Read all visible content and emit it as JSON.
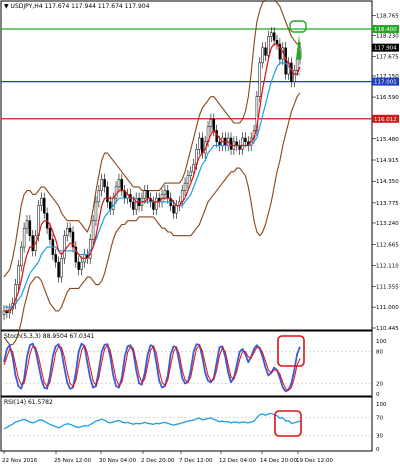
{
  "chart_data": [
    {
      "type": "candlestick",
      "title": "USDJPY,H4",
      "ohlc": "117.674 117.944 117.674 117.904",
      "ylim": [
        110.445,
        118.8
      ],
      "y_ticks": [
        "118.765",
        "118.230",
        "117.675",
        "117.150",
        "116.590",
        "116.020",
        "115.480",
        "114.915",
        "114.350",
        "113.775",
        "113.240",
        "112.665",
        "112.110",
        "111.555",
        "111.000",
        "110.445"
      ],
      "x_ticks": [
        "22 Nov 2016",
        "25 Nov 12:00",
        "30 Nov 04:00",
        "2 Dec 20:00",
        "7 Dec 12:00",
        "12 Dec 04:00",
        "14 Dec 20:00",
        "19 Dec 12:00"
      ],
      "hlines": [
        {
          "value": 118.4,
          "label": "118.400",
          "color": "#22aa22"
        },
        {
          "value": 117.904,
          "label": "117.904",
          "color": "#000000"
        },
        {
          "value": 117.001,
          "label": "117.001",
          "color": "#1f3fbf"
        },
        {
          "value": 116.012,
          "label": "116.012",
          "color": "#d01818"
        }
      ],
      "price": [
        110.9,
        110.85,
        110.95,
        111.1,
        111.6,
        112.1,
        112.6,
        113.1,
        113.3,
        112.9,
        112.5,
        112.9,
        113.7,
        113.9,
        113.5,
        113.1,
        112.8,
        112.4,
        112.2,
        111.8,
        112.3,
        112.9,
        113.1,
        113.0,
        112.6,
        112.2,
        112.0,
        112.2,
        112.4,
        112.3,
        112.8,
        113.3,
        113.8,
        114.1,
        114.4,
        114.2,
        113.8,
        113.6,
        113.9,
        114.2,
        114.4,
        114.1,
        113.9,
        114.0,
        113.8,
        113.6,
        113.9,
        113.7,
        113.9,
        114.1,
        113.9,
        113.8,
        113.6,
        113.9,
        113.8,
        114.0,
        114.1,
        113.9,
        113.7,
        113.5,
        113.7,
        113.8,
        114.1,
        114.3,
        114.5,
        114.6,
        114.8,
        115.2,
        115.5,
        115.1,
        115.4,
        115.8,
        116.0,
        115.7,
        115.4,
        115.3,
        115.5,
        115.3,
        115.5,
        115.2,
        115.4,
        115.3,
        115.2,
        115.5,
        115.4,
        115.3,
        115.5,
        115.7,
        116.6,
        117.5,
        117.9,
        117.7,
        118.2,
        118.3,
        118.1,
        118.0,
        117.6,
        117.9,
        117.2,
        117.5,
        117.0,
        117.3,
        117.6,
        117.9
      ],
      "red_ma": [
        110.9,
        110.9,
        110.9,
        111.0,
        111.2,
        111.4,
        111.7,
        112.1,
        112.4,
        112.6,
        112.6,
        112.7,
        112.9,
        113.2,
        113.3,
        113.3,
        113.2,
        113.0,
        112.8,
        112.5,
        112.4,
        112.5,
        112.6,
        112.7,
        112.7,
        112.5,
        112.4,
        112.3,
        112.3,
        112.3,
        112.4,
        112.6,
        112.9,
        113.3,
        113.7,
        113.9,
        113.9,
        113.9,
        113.9,
        114.0,
        114.1,
        114.1,
        114.1,
        114.0,
        113.9,
        113.9,
        113.8,
        113.8,
        113.8,
        113.8,
        113.9,
        113.9,
        113.8,
        113.8,
        113.8,
        113.9,
        113.9,
        113.9,
        113.9,
        113.8,
        113.7,
        113.7,
        113.8,
        113.9,
        114.1,
        114.3,
        114.5,
        114.8,
        115.0,
        115.1,
        115.2,
        115.4,
        115.6,
        115.7,
        115.6,
        115.5,
        115.4,
        115.4,
        115.4,
        115.3,
        115.3,
        115.3,
        115.3,
        115.3,
        115.3,
        115.3,
        115.4,
        115.5,
        115.8,
        116.3,
        116.8,
        117.2,
        117.6,
        117.9,
        118.0,
        118.0,
        117.9,
        117.8,
        117.6,
        117.5,
        117.3,
        117.2,
        117.2,
        117.4
      ],
      "blue_ma": [
        111.0,
        111.0,
        111.0,
        111.0,
        111.1,
        111.2,
        111.3,
        111.5,
        111.7,
        111.9,
        112.0,
        112.1,
        112.2,
        112.4,
        112.5,
        112.6,
        112.6,
        112.6,
        112.6,
        112.5,
        112.5,
        112.5,
        112.5,
        112.5,
        112.5,
        112.5,
        112.4,
        112.4,
        112.4,
        112.4,
        112.5,
        112.6,
        112.8,
        113.0,
        113.2,
        113.4,
        113.5,
        113.6,
        113.7,
        113.8,
        113.9,
        113.9,
        113.9,
        113.9,
        113.9,
        113.9,
        113.9,
        113.8,
        113.8,
        113.8,
        113.8,
        113.8,
        113.8,
        113.8,
        113.8,
        113.8,
        113.8,
        113.8,
        113.8,
        113.8,
        113.7,
        113.7,
        113.7,
        113.8,
        113.9,
        114.0,
        114.2,
        114.4,
        114.6,
        114.8,
        114.9,
        115.1,
        115.2,
        115.3,
        115.3,
        115.3,
        115.3,
        115.3,
        115.3,
        115.3,
        115.3,
        115.3,
        115.3,
        115.3,
        115.3,
        115.3,
        115.3,
        115.4,
        115.5,
        115.8,
        116.1,
        116.4,
        116.7,
        117.0,
        117.2,
        117.4,
        117.5,
        117.5,
        117.5,
        117.4,
        117.3,
        117.2,
        117.2,
        117.2
      ],
      "bb_upper": [
        111.8,
        111.9,
        112.0,
        112.3,
        112.7,
        113.2,
        113.7,
        114.0,
        114.1,
        114.1,
        114.0,
        114.0,
        114.1,
        114.2,
        114.2,
        114.1,
        114.0,
        113.9,
        113.8,
        113.7,
        113.5,
        113.4,
        113.3,
        113.3,
        113.3,
        113.3,
        113.3,
        113.2,
        113.1,
        113.0,
        113.2,
        113.6,
        114.1,
        114.5,
        114.9,
        115.1,
        115.1,
        115.0,
        114.9,
        114.8,
        114.7,
        114.6,
        114.5,
        114.4,
        114.3,
        114.2,
        114.2,
        114.2,
        114.1,
        114.1,
        114.1,
        114.1,
        114.1,
        114.1,
        114.1,
        114.2,
        114.3,
        114.3,
        114.3,
        114.3,
        114.3,
        114.3,
        114.4,
        114.6,
        114.9,
        115.2,
        115.5,
        115.8,
        116.1,
        116.3,
        116.4,
        116.5,
        116.6,
        116.6,
        116.5,
        116.4,
        116.3,
        116.2,
        116.1,
        116.0,
        115.9,
        115.9,
        115.9,
        116.0,
        116.2,
        116.6,
        117.2,
        118.0,
        118.6,
        118.9,
        119.1,
        119.2,
        119.2,
        119.2,
        119.2,
        119.1,
        119.0,
        118.8,
        118.6,
        118.4,
        118.2,
        118.1,
        118.0,
        118.0
      ],
      "bb_lower": [
        110.2,
        110.1,
        110.0,
        110.0,
        110.1,
        110.3,
        110.6,
        111.0,
        111.3,
        111.6,
        111.7,
        111.8,
        111.8,
        111.7,
        111.5,
        111.3,
        111.1,
        111.0,
        110.9,
        110.9,
        111.0,
        111.2,
        111.4,
        111.5,
        111.5,
        111.5,
        111.5,
        111.6,
        111.7,
        111.8,
        111.8,
        111.7,
        111.6,
        111.6,
        111.7,
        111.9,
        112.2,
        112.5,
        112.8,
        113.0,
        113.1,
        113.2,
        113.2,
        113.3,
        113.3,
        113.3,
        113.3,
        113.4,
        113.4,
        113.4,
        113.4,
        113.4,
        113.4,
        113.3,
        113.2,
        113.1,
        113.1,
        113.0,
        113.0,
        112.9,
        112.9,
        112.9,
        112.9,
        112.9,
        112.9,
        112.9,
        113.0,
        113.1,
        113.2,
        113.4,
        113.6,
        113.8,
        113.9,
        114.0,
        114.1,
        114.2,
        114.3,
        114.4,
        114.5,
        114.6,
        114.6,
        114.7,
        114.7,
        114.6,
        114.5,
        114.2,
        113.8,
        113.3,
        113.0,
        112.9,
        113.0,
        113.2,
        113.5,
        113.8,
        114.2,
        114.6,
        114.9,
        115.3,
        115.6,
        115.9,
        116.2,
        116.4,
        116.6,
        116.7
      ],
      "annotations": [
        "green circle at 118.400 target",
        "upward arrow"
      ]
    },
    {
      "type": "line",
      "title": "Stoch(5,3,3) 88.9504 67.0341",
      "ylim": [
        0,
        100
      ],
      "y_ticks": [
        "100",
        "80",
        "20",
        "0"
      ],
      "main": [
        60,
        85,
        92,
        70,
        35,
        15,
        10,
        28,
        70,
        92,
        95,
        82,
        55,
        28,
        12,
        10,
        35,
        72,
        90,
        94,
        80,
        50,
        22,
        10,
        12,
        40,
        80,
        95,
        90,
        60,
        30,
        12,
        15,
        45,
        80,
        93,
        94,
        70,
        35,
        15,
        12,
        30,
        70,
        90,
        92,
        80,
        45,
        20,
        18,
        40,
        75,
        92,
        90,
        60,
        25,
        12,
        15,
        35,
        75,
        90,
        88,
        60,
        30,
        20,
        22,
        45,
        80,
        94,
        93,
        70,
        40,
        25,
        22,
        30,
        60,
        88,
        90,
        70,
        40,
        22,
        30,
        55,
        80,
        85,
        75,
        60,
        70,
        85,
        92,
        85,
        70,
        50,
        35,
        40,
        50,
        45,
        30,
        12,
        5,
        8,
        20,
        45,
        75,
        89
      ],
      "signal": [
        55,
        70,
        85,
        80,
        55,
        30,
        18,
        20,
        45,
        75,
        90,
        88,
        70,
        45,
        22,
        14,
        22,
        50,
        78,
        90,
        88,
        70,
        42,
        20,
        14,
        25,
        55,
        82,
        92,
        78,
        50,
        25,
        16,
        30,
        60,
        85,
        92,
        82,
        55,
        28,
        16,
        22,
        48,
        78,
        90,
        86,
        62,
        35,
        22,
        28,
        55,
        82,
        90,
        78,
        45,
        22,
        16,
        26,
        55,
        80,
        88,
        75,
        45,
        27,
        22,
        32,
        60,
        85,
        92,
        82,
        58,
        35,
        25,
        27,
        45,
        72,
        88,
        80,
        55,
        32,
        28,
        42,
        65,
        80,
        80,
        70,
        68,
        78,
        88,
        88,
        78,
        62,
        45,
        40,
        45,
        45,
        38,
        22,
        10,
        7,
        12,
        30,
        55,
        67
      ],
      "annotations": [
        "red rounded rectangle highlighting latest rise"
      ]
    },
    {
      "type": "line",
      "title": "RSI(14) 61.5782",
      "ylim": [
        0,
        100
      ],
      "y_ticks": [
        "100",
        "70",
        "30",
        "0"
      ],
      "values": [
        45,
        48,
        52,
        55,
        60,
        62,
        64,
        66,
        63,
        60,
        58,
        60,
        64,
        65,
        62,
        58,
        55,
        52,
        50,
        47,
        50,
        54,
        56,
        55,
        52,
        49,
        48,
        50,
        52,
        51,
        54,
        58,
        62,
        64,
        66,
        64,
        60,
        58,
        60,
        62,
        63,
        60,
        58,
        59,
        57,
        55,
        57,
        56,
        57,
        59,
        57,
        56,
        55,
        57,
        56,
        58,
        59,
        57,
        55,
        53,
        55,
        56,
        58,
        60,
        62,
        63,
        64,
        67,
        69,
        65,
        66,
        68,
        69,
        66,
        63,
        61,
        62,
        60,
        61,
        58,
        60,
        59,
        58,
        60,
        59,
        58,
        60,
        62,
        70,
        76,
        78,
        75,
        78,
        79,
        76,
        74,
        68,
        70,
        62,
        63,
        57,
        58,
        60,
        62
      ]
    }
  ]
}
